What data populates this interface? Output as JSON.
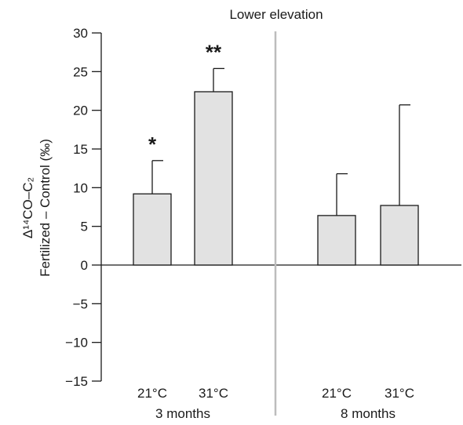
{
  "chart_data": {
    "type": "bar",
    "title": "Lower elevation",
    "ylabel_line1": "Δ¹⁴CO–C₂",
    "ylabel_line2": "Fertilized – Control (‰)",
    "ylim": [
      -15,
      30
    ],
    "yticks": [
      "30",
      "25",
      "20",
      "15",
      "10",
      "5",
      "0",
      "−5",
      "−10",
      "−15"
    ],
    "ytick_values": [
      30,
      25,
      20,
      15,
      10,
      5,
      0,
      -5,
      -10,
      -15
    ],
    "groups": [
      {
        "label": "3 months",
        "bars": [
          {
            "category": "21°C",
            "value": 9.2,
            "error": 4.3,
            "significance": "*"
          },
          {
            "category": "31°C",
            "value": 22.4,
            "error": 3.0,
            "significance": "**"
          }
        ]
      },
      {
        "label": "8 months",
        "bars": [
          {
            "category": "21°C",
            "value": 6.4,
            "error": 5.4,
            "significance": ""
          },
          {
            "category": "31°C",
            "value": 7.7,
            "error": 13.0,
            "significance": ""
          }
        ]
      }
    ],
    "bar_fill": "#e2e2e2",
    "bar_stroke": "#1a1a1a",
    "divider_color": "#bdbdbd"
  }
}
